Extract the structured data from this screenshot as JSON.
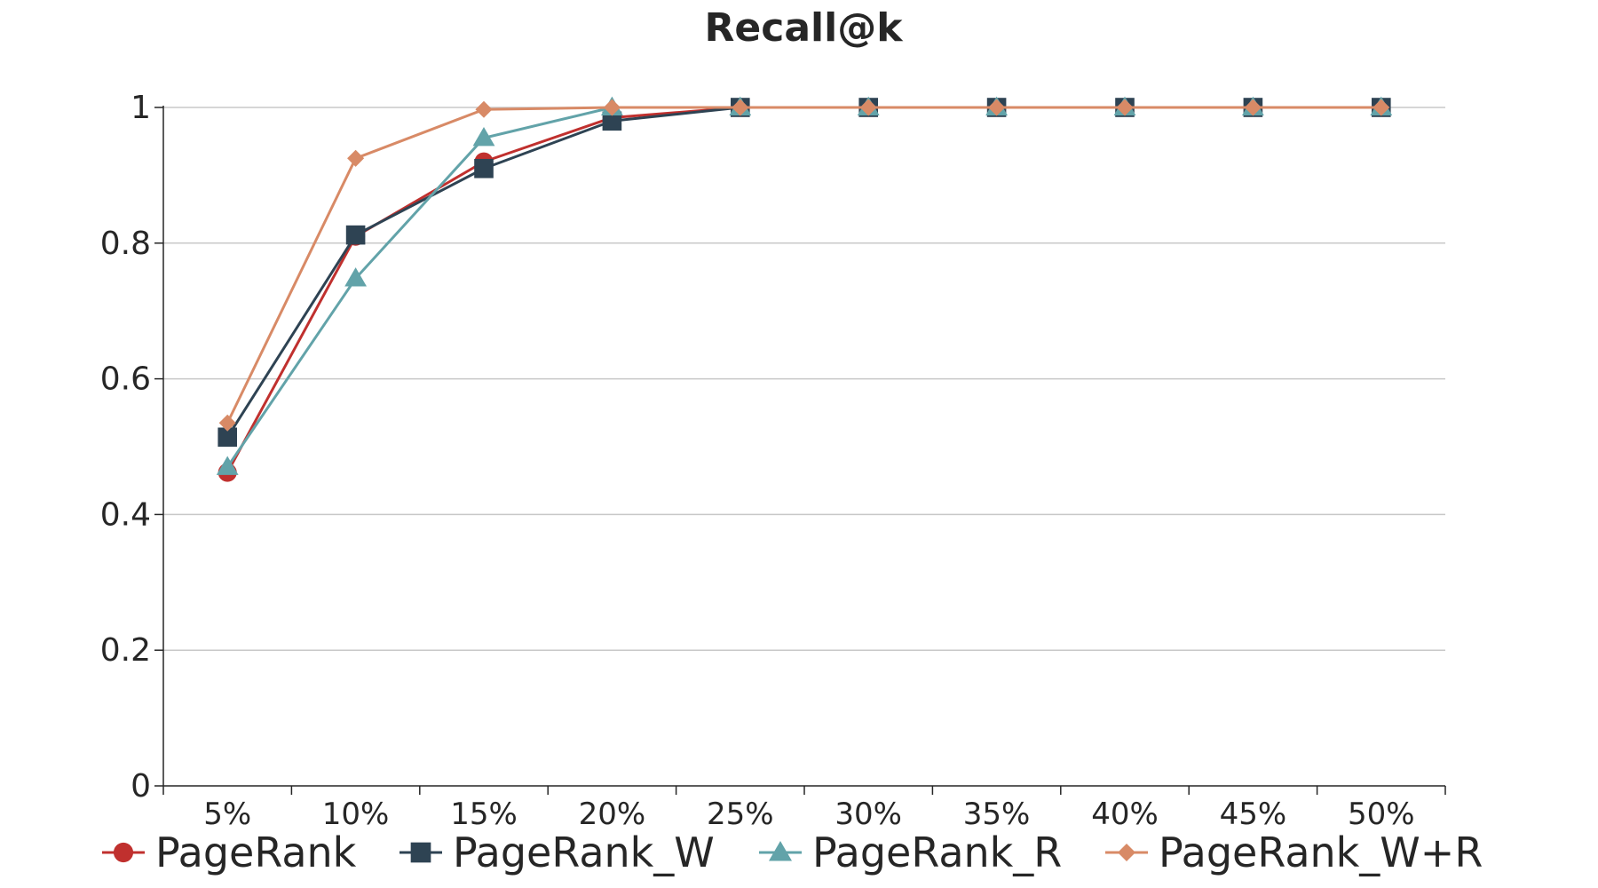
{
  "chart_data": {
    "type": "line",
    "title": "Recall@k",
    "xlabel": "",
    "ylabel": "",
    "categories": [
      "5%",
      "10%",
      "15%",
      "20%",
      "25%",
      "30%",
      "35%",
      "40%",
      "45%",
      "50%"
    ],
    "y_ticks": [
      "0",
      "0.2",
      "0.4",
      "0.6",
      "0.8",
      "1"
    ],
    "ylim": [
      0,
      1
    ],
    "grid": "horizontal",
    "legend_position": "bottom",
    "series": [
      {
        "name": "PageRank",
        "marker": "circle",
        "color": "#C0302E",
        "values": [
          0.462,
          0.81,
          0.92,
          0.985,
          1,
          1,
          1,
          1,
          1,
          1
        ]
      },
      {
        "name": "PageRank_W",
        "marker": "square",
        "color": "#2E4353",
        "values": [
          0.514,
          0.812,
          0.91,
          0.98,
          1,
          1,
          1,
          1,
          1,
          1
        ]
      },
      {
        "name": "PageRank_R",
        "marker": "triangle",
        "color": "#62A3A9",
        "values": [
          0.47,
          0.748,
          0.955,
          1,
          1,
          1,
          1,
          1,
          1,
          1
        ]
      },
      {
        "name": "PageRank_W+R",
        "marker": "diamond",
        "color": "#D88A66",
        "values": [
          0.535,
          0.925,
          0.997,
          1,
          1,
          1,
          1,
          1,
          1,
          1
        ]
      }
    ]
  }
}
